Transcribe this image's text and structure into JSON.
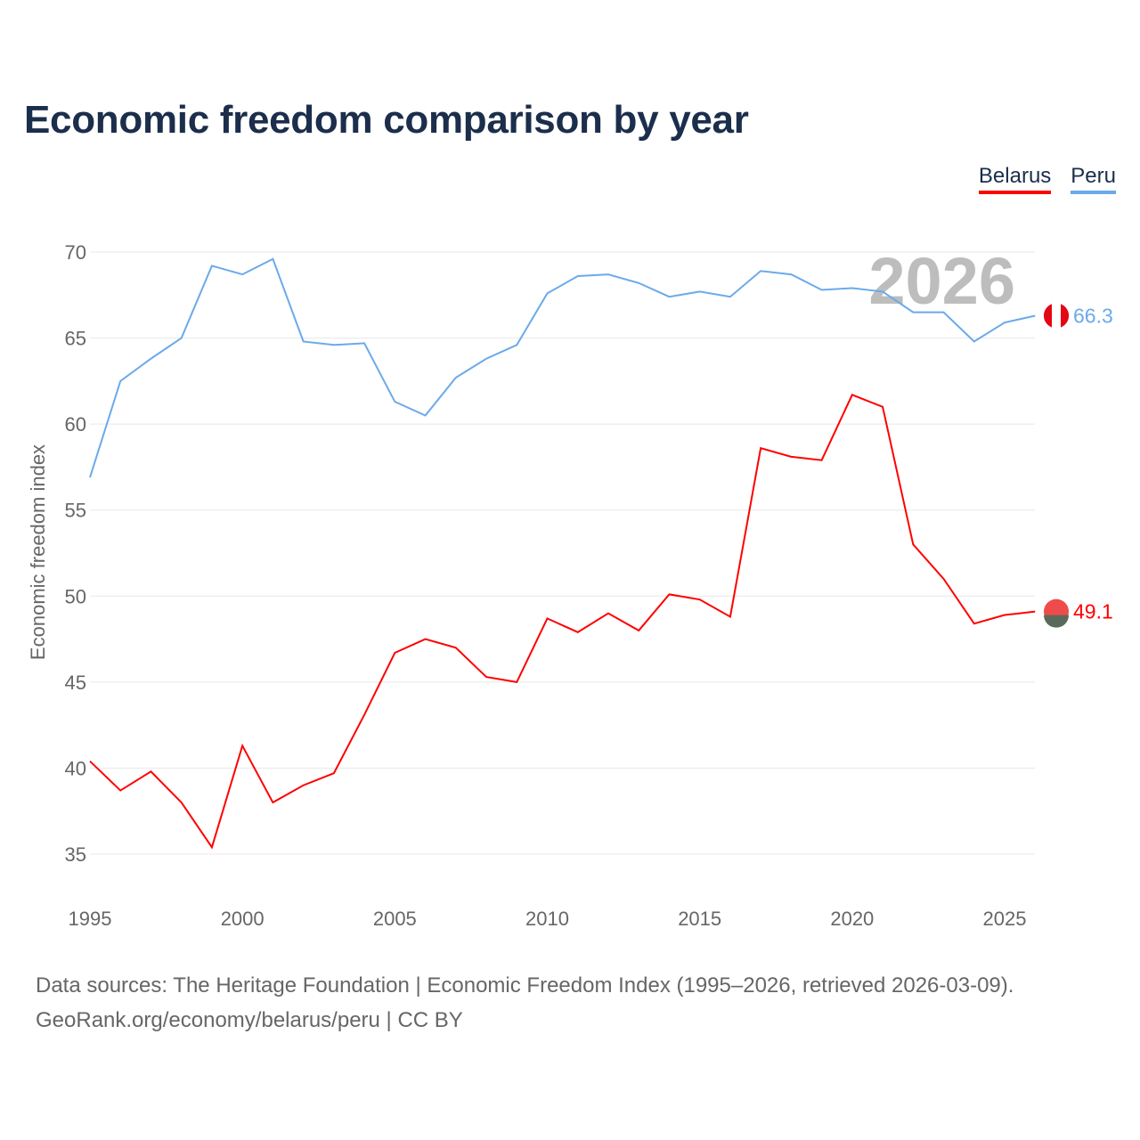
{
  "title": "Economic freedom comparison by year",
  "legend": [
    {
      "label": "Belarus",
      "color": "#ff0000"
    },
    {
      "label": "Peru",
      "color": "#6aaaea"
    }
  ],
  "footer": {
    "line1": "Data sources: The Heritage Foundation | Economic Freedom Index (1995–2026, retrieved 2026-03-09).",
    "line2": "GeoRank.org/economy/belarus/peru | CC BY"
  },
  "chart_data": {
    "type": "line",
    "title": "Economic freedom comparison by year",
    "xlabel": "",
    "ylabel": "Economic freedom index",
    "year_watermark": "2026",
    "xlim": [
      1995,
      2026
    ],
    "ylim": [
      33,
      72
    ],
    "xticks": [
      "1995",
      "2000",
      "2005",
      "2010",
      "2015",
      "2020",
      "2025"
    ],
    "yticks": [
      "35",
      "40",
      "45",
      "50",
      "55",
      "60",
      "65",
      "70"
    ],
    "x": [
      1995,
      1996,
      1997,
      1998,
      1999,
      2000,
      2001,
      2002,
      2003,
      2004,
      2005,
      2006,
      2007,
      2008,
      2009,
      2010,
      2011,
      2012,
      2013,
      2014,
      2015,
      2016,
      2017,
      2018,
      2019,
      2020,
      2021,
      2022,
      2023,
      2024,
      2025,
      2026
    ],
    "series": [
      {
        "name": "Belarus",
        "color": "#ff0000",
        "end_label": "49.1",
        "values": [
          40.4,
          38.7,
          39.8,
          38.0,
          35.4,
          41.3,
          38.0,
          39.0,
          39.7,
          43.1,
          46.7,
          47.5,
          47.0,
          45.3,
          45.0,
          48.7,
          47.9,
          49.0,
          48.0,
          50.1,
          49.8,
          48.8,
          58.6,
          58.1,
          57.9,
          61.7,
          61.0,
          53.0,
          51.0,
          48.4,
          48.9,
          49.1
        ]
      },
      {
        "name": "Peru",
        "color": "#6aaaea",
        "end_label": "66.3",
        "values": [
          56.9,
          62.5,
          63.8,
          65.0,
          69.2,
          68.7,
          69.6,
          64.8,
          64.6,
          64.7,
          61.3,
          60.5,
          62.7,
          63.8,
          64.6,
          67.6,
          68.6,
          68.7,
          68.2,
          67.4,
          67.7,
          67.4,
          68.9,
          68.7,
          67.8,
          67.9,
          67.7,
          66.5,
          66.5,
          64.8,
          65.9,
          66.3
        ]
      }
    ],
    "grid": true,
    "legend_position": "top-right"
  }
}
